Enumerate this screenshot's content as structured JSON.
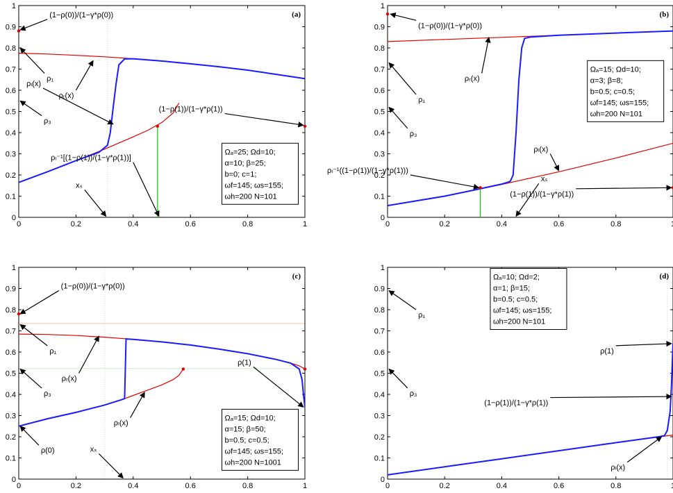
{
  "chart_data": [
    {
      "type": "line",
      "panel_label": "(a)",
      "xlim": [
        0,
        1
      ],
      "ylim": [
        0,
        1
      ],
      "xticks": [
        "0",
        "0.2",
        "0.4",
        "0.6",
        "0.8",
        "1"
      ],
      "yticks": [
        "0",
        "0.1",
        "0.2",
        "0.3",
        "0.4",
        "0.5",
        "0.6",
        "0.7",
        "0.8",
        "0.9",
        "1"
      ],
      "series": [
        {
          "color": "#e00000",
          "x": [
            0,
            0.1,
            0.2,
            0.3,
            0.4,
            0.5,
            0.6,
            0.7,
            0.8,
            0.9,
            1.0
          ],
          "y": [
            0.775,
            0.771,
            0.765,
            0.758,
            0.749,
            0.738,
            0.725,
            0.711,
            0.695,
            0.675,
            0.655
          ]
        },
        {
          "color": "#e00000",
          "x": [
            0,
            0.1,
            0.2,
            0.3,
            0.4,
            0.45,
            0.5,
            0.54,
            0.56
          ],
          "y": [
            0.165,
            0.215,
            0.268,
            0.322,
            0.38,
            0.41,
            0.448,
            0.493,
            0.54
          ]
        },
        {
          "color": "#1a1aff",
          "x": [
            0,
            0.1,
            0.2,
            0.28,
            0.31,
            0.32,
            0.33,
            0.34,
            0.35,
            0.37,
            0.4,
            0.5,
            0.6,
            0.7,
            0.8,
            0.9,
            1.0
          ],
          "y": [
            0.165,
            0.215,
            0.268,
            0.307,
            0.34,
            0.4,
            0.52,
            0.63,
            0.72,
            0.748,
            0.749,
            0.738,
            0.725,
            0.711,
            0.695,
            0.675,
            0.655
          ]
        },
        {
          "color": "#00cc00",
          "x": [
            0.485,
            0.485
          ],
          "y": [
            0,
            0.43
          ]
        }
      ],
      "points": [
        {
          "x": 0,
          "y": 0.88,
          "color": "#e00000"
        },
        {
          "x": 1,
          "y": 0.43,
          "color": "#e00000"
        },
        {
          "x": 0.485,
          "y": 0.43,
          "color": "#e00000"
        }
      ],
      "guides": [
        {
          "orient": "v",
          "value": 0.31,
          "color": "#dddddd"
        }
      ],
      "annotations": [
        {
          "text": "(1−ρ(0))/(1−γ*ρ(0))",
          "tx": 0.1,
          "ty": 0.935,
          "ax": 0.005,
          "ay": 0.885
        },
        {
          "text": "ρ₁",
          "tx": 0.09,
          "ty": 0.68,
          "ax": 0.005,
          "ay": 0.8
        },
        {
          "text": "ρᵣ(x)",
          "tx": 0.2,
          "ty": 0.6,
          "ax": 0.26,
          "ay": 0.74
        },
        {
          "text": "ρ₃",
          "tx": 0.08,
          "ty": 0.48,
          "ax": 0.005,
          "ay": 0.55
        },
        {
          "text": "ρₗ(x)",
          "tx": 0.085,
          "ty": 0.61,
          "ax": 0.33,
          "ay": 0.44
        },
        {
          "text": "(1−ρ(1))/(1−γ*ρ(1))",
          "tx": 0.72,
          "ty": 0.49,
          "ax": 0.995,
          "ay": 0.435
        },
        {
          "text": "ρₗ⁻¹[(1−ρ(1))/(1−γ*ρ(1))]",
          "tx": 0.4,
          "ty": 0.26,
          "ax": 0.49,
          "ay": 0.005
        },
        {
          "text": "xₛ",
          "tx": 0.23,
          "ty": 0.13,
          "ax": 0.305,
          "ay": 0.005
        }
      ],
      "legend_lines": [
        "Ωₐ=25;  Ωd=10;",
        "α=10;    β=25;",
        "b=0;        c=1;",
        "ωf=145; ωs=155;",
        "ωh=200  N=101"
      ],
      "legend_pos": {
        "x": 0.71,
        "y": 0.35
      }
    },
    {
      "type": "line",
      "panel_label": "(b)",
      "xlim": [
        0,
        1
      ],
      "ylim": [
        0,
        1
      ],
      "xticks": [
        "0",
        "0.2",
        "0.4",
        "0.6",
        "0.8",
        "1"
      ],
      "yticks": [
        "0",
        "0.1",
        "0.2",
        "0.3",
        "0.4",
        "0.5",
        "0.6",
        "0.7",
        "0.8",
        "0.9",
        "1"
      ],
      "series": [
        {
          "color": "#e00000",
          "x": [
            0,
            0.2,
            0.4,
            0.6,
            0.8,
            1.0
          ],
          "y": [
            0.83,
            0.84,
            0.85,
            0.86,
            0.87,
            0.88
          ]
        },
        {
          "color": "#e00000",
          "x": [
            0,
            0.2,
            0.4,
            0.6,
            0.8,
            1.0
          ],
          "y": [
            0.055,
            0.1,
            0.155,
            0.215,
            0.28,
            0.35
          ]
        },
        {
          "color": "#1a1aff",
          "x": [
            0,
            0.2,
            0.3,
            0.4,
            0.42,
            0.43,
            0.44,
            0.45,
            0.46,
            0.47,
            0.48,
            0.5,
            0.6,
            0.8,
            1.0
          ],
          "y": [
            0.055,
            0.1,
            0.128,
            0.157,
            0.165,
            0.17,
            0.2,
            0.4,
            0.65,
            0.8,
            0.845,
            0.851,
            0.86,
            0.87,
            0.88
          ]
        },
        {
          "color": "#00cc00",
          "x": [
            0.325,
            0.325
          ],
          "y": [
            0,
            0.14
          ]
        }
      ],
      "points": [
        {
          "x": 0,
          "y": 0.96,
          "color": "#e00000"
        },
        {
          "x": 1,
          "y": 0.14,
          "color": "#e00000"
        },
        {
          "x": 0.325,
          "y": 0.14,
          "color": "#e00000"
        }
      ],
      "guides": [],
      "annotations": [
        {
          "text": "(1−ρ(0))/(1−γ*ρ(0))",
          "tx": 0.1,
          "ty": 0.93,
          "ax": 0.01,
          "ay": 0.96
        },
        {
          "text": "ρᵣ(x)",
          "tx": 0.33,
          "ty": 0.68,
          "ax": 0.355,
          "ay": 0.85
        },
        {
          "text": "ρ₁",
          "tx": 0.1,
          "ty": 0.58,
          "ax": 0.005,
          "ay": 0.73
        },
        {
          "text": "ρ₃",
          "tx": 0.07,
          "ty": 0.42,
          "ax": 0.005,
          "ay": 0.52
        },
        {
          "text": "ρₗ⁻¹((1−ρ(1))/(1−γ*ρ(1)))",
          "tx": 0.08,
          "ty": 0.2,
          "ax": 0.32,
          "ay": 0.14
        },
        {
          "text": "ρₗ(x)",
          "tx": 0.57,
          "ty": 0.3,
          "ax": 0.6,
          "ay": 0.22
        },
        {
          "text": "xₛ",
          "tx": 0.53,
          "ty": 0.16,
          "ax": 0.45,
          "ay": 0.005
        },
        {
          "text": "(1−ρ(1))/(1−γ*ρ(1))",
          "tx": 0.66,
          "ty": 0.135,
          "ax": 0.995,
          "ay": 0.14
        }
      ],
      "legend_lines": [
        "Ωₐ=15;  Ωd=10;",
        "α=3;      β=8;",
        "b=0.5;     c=0.5;",
        "ωf=145;   ωs=155;",
        "ωh=200  N=101"
      ],
      "legend_pos": {
        "x": 0.7,
        "y": 0.74
      }
    },
    {
      "type": "line",
      "panel_label": "(c)",
      "xlim": [
        0,
        1
      ],
      "ylim": [
        0,
        1
      ],
      "xticks": [
        "0",
        "0.2",
        "0.4",
        "0.6",
        "0.8",
        "1"
      ],
      "yticks": [
        "0",
        "0.1",
        "0.2",
        "0.3",
        "0.4",
        "0.5",
        "0.6",
        "0.7",
        "0.8",
        "0.9",
        "1"
      ],
      "series": [
        {
          "color": "#e00000",
          "x": [
            0,
            0.1,
            0.2,
            0.3,
            0.4,
            0.5,
            0.6,
            0.7,
            0.8,
            0.9,
            0.95,
            0.98,
            1.0
          ],
          "y": [
            0.685,
            0.683,
            0.678,
            0.67,
            0.66,
            0.648,
            0.633,
            0.614,
            0.592,
            0.565,
            0.548,
            0.535,
            0.52
          ]
        },
        {
          "color": "#e00000",
          "x": [
            0,
            0.1,
            0.2,
            0.3,
            0.36,
            0.4,
            0.45,
            0.5,
            0.54,
            0.56,
            0.575
          ],
          "y": [
            0.25,
            0.285,
            0.315,
            0.35,
            0.375,
            0.395,
            0.42,
            0.445,
            0.47,
            0.49,
            0.52
          ]
        },
        {
          "color": "#1a1aff",
          "x": [
            0,
            0.1,
            0.2,
            0.3,
            0.36,
            0.37,
            0.372,
            0.375,
            0.4,
            0.5,
            0.6,
            0.7,
            0.8,
            0.9,
            0.95,
            0.98,
            0.99,
            0.995,
            1.0
          ],
          "y": [
            0.25,
            0.285,
            0.315,
            0.35,
            0.375,
            0.38,
            0.5,
            0.662,
            0.66,
            0.648,
            0.633,
            0.614,
            0.592,
            0.565,
            0.548,
            0.52,
            0.47,
            0.4,
            0.34
          ]
        }
      ],
      "points": [
        {
          "x": 0,
          "y": 0.78,
          "color": "#e00000"
        },
        {
          "x": 1,
          "y": 0.52,
          "color": "#e00000"
        },
        {
          "x": 0.575,
          "y": 0.52,
          "color": "#e00000"
        }
      ],
      "guides": [
        {
          "orient": "h",
          "value": 0.735,
          "color": "#f5c2a8"
        },
        {
          "orient": "h",
          "value": 0.522,
          "color": "#ccf0cc"
        },
        {
          "orient": "v",
          "value": 0.3,
          "color": "#dddddd"
        }
      ],
      "annotations": [
        {
          "text": "(1−ρ(0))/(1−γ*ρ(0))",
          "tx": 0.14,
          "ty": 0.89,
          "ax": 0.005,
          "ay": 0.78
        },
        {
          "text": "ρ₁",
          "tx": 0.1,
          "ty": 0.63,
          "ax": 0.005,
          "ay": 0.73
        },
        {
          "text": "ρᵣ(x)",
          "tx": 0.21,
          "ty": 0.5,
          "ax": 0.28,
          "ay": 0.675
        },
        {
          "text": "ρ₃",
          "tx": 0.08,
          "ty": 0.43,
          "ax": 0.005,
          "ay": 0.52
        },
        {
          "text": "ρₗ(x)",
          "tx": 0.39,
          "ty": 0.29,
          "ax": 0.44,
          "ay": 0.41
        },
        {
          "text": "ρ(0)",
          "tx": 0.07,
          "ty": 0.16,
          "ax": 0.005,
          "ay": 0.25
        },
        {
          "text": "xₛ",
          "tx": 0.28,
          "ty": 0.12,
          "ax": 0.365,
          "ay": 0.005
        },
        {
          "text": "ρ(1)",
          "tx": 0.82,
          "ty": 0.53,
          "ax": 0.995,
          "ay": 0.34
        }
      ],
      "legend_lines": [
        "Ωₐ=15;  Ωd=10;",
        "α=15;     β=50;",
        "b=0.5;     c=0.5;",
        "ωf=145;  ωs=155;",
        "ωh=200  N=1001"
      ],
      "legend_pos": {
        "x": 0.71,
        "y": 0.33
      }
    },
    {
      "type": "line",
      "panel_label": "(d)",
      "xlim": [
        0,
        1
      ],
      "ylim": [
        0,
        1
      ],
      "xticks": [
        "0",
        "0.2",
        "0.4",
        "0.6",
        "0.8",
        "1"
      ],
      "yticks": [
        "0",
        "0.1",
        "0.2",
        "0.3",
        "0.4",
        "0.5",
        "0.6",
        "0.7",
        "0.8",
        "0.9",
        "1"
      ],
      "series": [
        {
          "color": "#e00000",
          "x": [
            0,
            0.2,
            0.4,
            0.6,
            0.8,
            0.95,
            1.0
          ],
          "y": [
            0.02,
            0.058,
            0.096,
            0.134,
            0.172,
            0.2,
            0.208
          ]
        },
        {
          "color": "#1a1aff",
          "x": [
            0,
            0.2,
            0.4,
            0.6,
            0.8,
            0.95,
            0.97,
            0.98,
            0.99,
            0.995,
            1.0
          ],
          "y": [
            0.02,
            0.058,
            0.096,
            0.134,
            0.172,
            0.2,
            0.205,
            0.23,
            0.32,
            0.45,
            0.64
          ]
        }
      ],
      "points": [],
      "guides": [
        {
          "orient": "v",
          "value": 0.98,
          "color": "#dddddd"
        }
      ],
      "annotations": [
        {
          "text": "ρ₁",
          "tx": 0.1,
          "ty": 0.8,
          "ax": 0.005,
          "ay": 0.89
        },
        {
          "text": "ρ₃",
          "tx": 0.07,
          "ty": 0.43,
          "ax": 0.005,
          "ay": 0.52
        },
        {
          "text": "ρ(1)",
          "tx": 0.8,
          "ty": 0.63,
          "ax": 0.995,
          "ay": 0.64
        },
        {
          "text": "(1−ρ(1))/(1−γ*ρ(1))",
          "tx": 0.57,
          "ty": 0.385,
          "ax": 0.995,
          "ay": 0.39
        },
        {
          "text": "ρₗ(x)",
          "tx": 0.84,
          "ty": 0.08,
          "ax": 0.96,
          "ay": 0.2
        }
      ],
      "legend_lines": [
        "Ωₐ=10;  Ωd=2;",
        "α=1;    β=15;",
        "b=0.5;  c=0.5;",
        "ωf=145; ωs=155;",
        "ωh=200  N=101"
      ],
      "legend_pos": {
        "x": 0.36,
        "y": 0.995
      }
    }
  ]
}
